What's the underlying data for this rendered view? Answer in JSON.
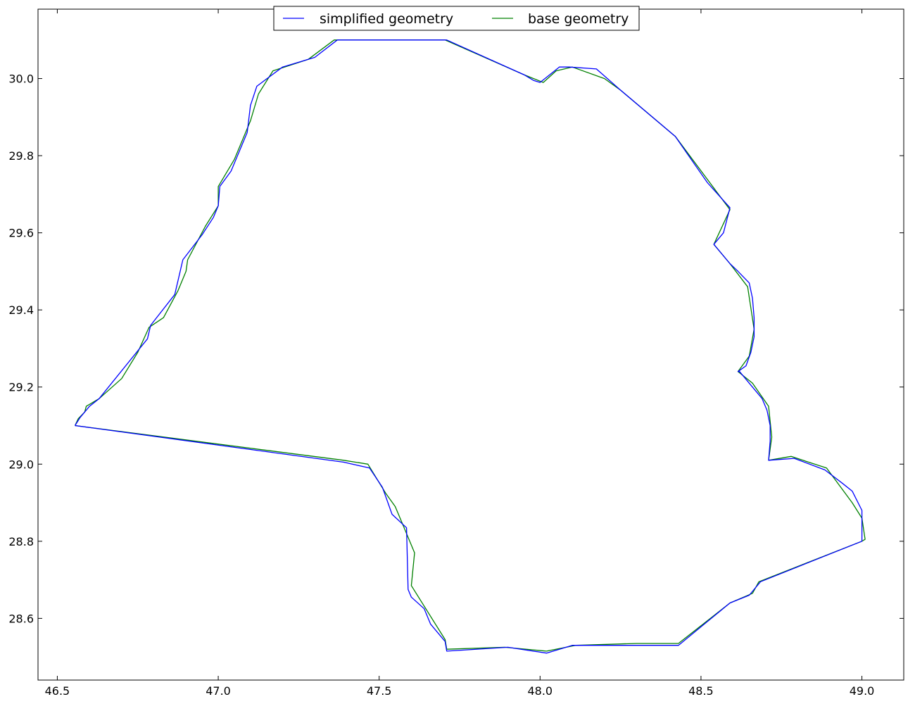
{
  "chart_data": {
    "type": "line",
    "title": "",
    "xlabel": "",
    "ylabel": "",
    "xlim": [
      46.44,
      49.13
    ],
    "ylim": [
      28.44,
      30.18
    ],
    "grid": false,
    "legend_position": "top-center",
    "x_ticks": [
      46.5,
      47.0,
      47.5,
      48.0,
      48.5,
      49.0
    ],
    "x_tick_labels": [
      "46.5",
      "47.0",
      "47.5",
      "48.0",
      "48.5",
      "49.0"
    ],
    "y_ticks": [
      28.6,
      28.8,
      29.0,
      29.2,
      29.4,
      29.6,
      29.8,
      30.0
    ],
    "y_tick_labels": [
      "28.6",
      "28.8",
      "29.0",
      "29.2",
      "29.4",
      "29.6",
      "29.8",
      "30.0"
    ],
    "series": [
      {
        "name": "base geometry",
        "color": "#008000",
        "points": [
          [
            46.555,
            29.1
          ],
          [
            46.565,
            29.118
          ],
          [
            46.585,
            29.135
          ],
          [
            46.59,
            29.15
          ],
          [
            46.63,
            29.17
          ],
          [
            46.7,
            29.222
          ],
          [
            46.75,
            29.29
          ],
          [
            46.785,
            29.355
          ],
          [
            46.83,
            29.38
          ],
          [
            46.875,
            29.45
          ],
          [
            46.9,
            29.5
          ],
          [
            46.905,
            29.53
          ],
          [
            46.96,
            29.617
          ],
          [
            47.0,
            29.67
          ],
          [
            47.0,
            29.72
          ],
          [
            47.05,
            29.79
          ],
          [
            47.1,
            29.89
          ],
          [
            47.125,
            29.96
          ],
          [
            47.17,
            30.02
          ],
          [
            47.28,
            30.05
          ],
          [
            47.36,
            30.1
          ],
          [
            47.38,
            30.1
          ],
          [
            47.705,
            30.1
          ],
          [
            47.95,
            30.01
          ],
          [
            48.01,
            29.99
          ],
          [
            48.05,
            30.02
          ],
          [
            48.1,
            30.03
          ],
          [
            48.2,
            30.0
          ],
          [
            48.25,
            29.97
          ],
          [
            48.42,
            29.85
          ],
          [
            48.59,
            29.66
          ],
          [
            48.54,
            29.57
          ],
          [
            48.59,
            29.52
          ],
          [
            48.645,
            29.46
          ],
          [
            48.665,
            29.35
          ],
          [
            48.65,
            29.28
          ],
          [
            48.615,
            29.24
          ],
          [
            48.66,
            29.21
          ],
          [
            48.71,
            29.15
          ],
          [
            48.72,
            29.07
          ],
          [
            48.71,
            29.01
          ],
          [
            48.78,
            29.02
          ],
          [
            48.89,
            28.99
          ],
          [
            48.97,
            28.9
          ],
          [
            49.0,
            28.86
          ],
          [
            49.01,
            28.805
          ],
          [
            49.0,
            28.8
          ],
          [
            48.68,
            28.695
          ],
          [
            48.66,
            28.665
          ],
          [
            48.59,
            28.64
          ],
          [
            48.43,
            28.535
          ],
          [
            48.3,
            28.535
          ],
          [
            48.11,
            28.53
          ],
          [
            48.02,
            28.515
          ],
          [
            47.89,
            28.525
          ],
          [
            47.71,
            28.52
          ],
          [
            47.705,
            28.545
          ],
          [
            47.6,
            28.685
          ],
          [
            47.61,
            28.77
          ],
          [
            47.58,
            28.83
          ],
          [
            47.55,
            28.89
          ],
          [
            47.52,
            28.925
          ],
          [
            47.465,
            29.0
          ],
          [
            47.39,
            29.01
          ],
          [
            46.555,
            29.1
          ]
        ]
      },
      {
        "name": "simplified geometry",
        "color": "#0000ff",
        "points": [
          [
            46.555,
            29.1
          ],
          [
            46.57,
            29.12
          ],
          [
            46.6,
            29.15
          ],
          [
            46.63,
            29.17
          ],
          [
            46.78,
            29.325
          ],
          [
            46.79,
            29.36
          ],
          [
            46.865,
            29.44
          ],
          [
            46.89,
            29.53
          ],
          [
            46.95,
            29.595
          ],
          [
            46.985,
            29.64
          ],
          [
            47.0,
            29.67
          ],
          [
            47.005,
            29.72
          ],
          [
            47.04,
            29.76
          ],
          [
            47.09,
            29.86
          ],
          [
            47.1,
            29.93
          ],
          [
            47.12,
            29.98
          ],
          [
            47.2,
            30.03
          ],
          [
            47.3,
            30.055
          ],
          [
            47.37,
            30.1
          ],
          [
            47.71,
            30.1
          ],
          [
            47.95,
            30.01
          ],
          [
            47.98,
            29.995
          ],
          [
            48.0,
            29.99
          ],
          [
            48.06,
            30.03
          ],
          [
            48.09,
            30.03
          ],
          [
            48.175,
            30.025
          ],
          [
            48.25,
            29.97
          ],
          [
            48.42,
            29.85
          ],
          [
            48.47,
            29.79
          ],
          [
            48.52,
            29.73
          ],
          [
            48.59,
            29.665
          ],
          [
            48.57,
            29.6
          ],
          [
            48.54,
            29.57
          ],
          [
            48.59,
            29.52
          ],
          [
            48.615,
            29.5
          ],
          [
            48.65,
            29.47
          ],
          [
            48.66,
            29.43
          ],
          [
            48.665,
            29.38
          ],
          [
            48.665,
            29.33
          ],
          [
            48.655,
            29.29
          ],
          [
            48.64,
            29.255
          ],
          [
            48.615,
            29.24
          ],
          [
            48.62,
            29.24
          ],
          [
            48.65,
            29.21
          ],
          [
            48.69,
            29.17
          ],
          [
            48.705,
            29.14
          ],
          [
            48.715,
            29.1
          ],
          [
            48.715,
            29.06
          ],
          [
            48.71,
            29.01
          ],
          [
            48.79,
            29.015
          ],
          [
            48.885,
            28.985
          ],
          [
            48.94,
            28.95
          ],
          [
            48.97,
            28.93
          ],
          [
            49.0,
            28.88
          ],
          [
            49.0,
            28.8
          ],
          [
            48.685,
            28.695
          ],
          [
            48.65,
            28.66
          ],
          [
            48.59,
            28.64
          ],
          [
            48.43,
            28.53
          ],
          [
            48.3,
            28.53
          ],
          [
            48.1,
            28.53
          ],
          [
            48.02,
            28.51
          ],
          [
            47.9,
            28.525
          ],
          [
            47.71,
            28.515
          ],
          [
            47.705,
            28.54
          ],
          [
            47.66,
            28.585
          ],
          [
            47.64,
            28.625
          ],
          [
            47.6,
            28.655
          ],
          [
            47.59,
            28.675
          ],
          [
            47.585,
            28.835
          ],
          [
            47.54,
            28.87
          ],
          [
            47.51,
            28.94
          ],
          [
            47.47,
            28.99
          ],
          [
            47.39,
            29.005
          ],
          [
            46.555,
            29.1
          ]
        ]
      }
    ]
  }
}
